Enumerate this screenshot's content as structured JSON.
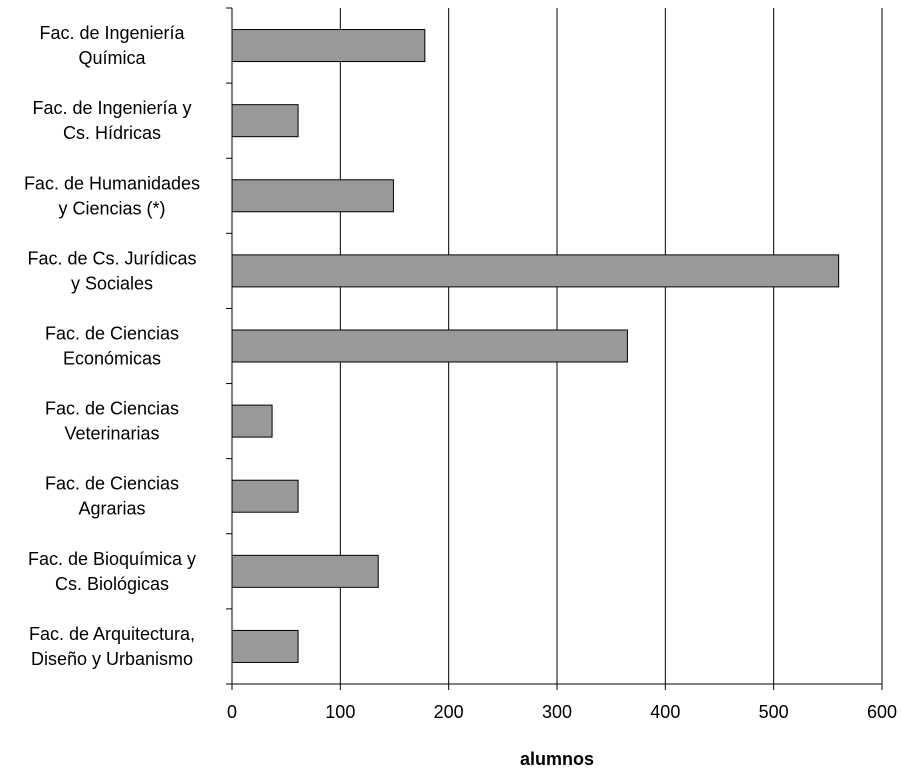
{
  "chart_data": {
    "type": "bar",
    "orientation": "horizontal",
    "categories": [
      "Fac. de Ingeniería Química",
      "Fac. de Ingeniería y Cs. Hídricas",
      "Fac. de Humanidades y Ciencias (*)",
      "Fac. de Cs. Jurídicas y Sociales",
      "Fac. de Ciencias Económicas",
      "Fac. de Ciencias Veterinarias",
      "Fac. de Ciencias Agrarias",
      "Fac. de Bioquímica y Cs. Biológicas",
      "Fac. de Arquitectura, Diseño y Urbanismo"
    ],
    "category_lines": [
      [
        "Fac. de Ingeniería",
        "Química"
      ],
      [
        "Fac. de Ingeniería y",
        "Cs. Hídricas"
      ],
      [
        "Fac. de Humanidades",
        "y Ciencias (*)"
      ],
      [
        "Fac. de Cs. Jurídicas",
        "y Sociales"
      ],
      [
        "Fac. de Ciencias",
        "Económicas"
      ],
      [
        "Fac. de Ciencias",
        "Veterinarias"
      ],
      [
        "Fac. de Ciencias",
        "Agrarias"
      ],
      [
        "Fac. de Bioquímica y",
        "Cs. Biológicas"
      ],
      [
        "Fac. de Arquitectura,",
        "Diseño y Urbanismo"
      ]
    ],
    "values": [
      178,
      61,
      149,
      560,
      365,
      37,
      61,
      135,
      61
    ],
    "xlabel": "alumnos",
    "xlim": [
      0,
      600
    ],
    "xticks": [
      0,
      100,
      200,
      300,
      400,
      500,
      600
    ],
    "grid": "vertical",
    "legend": "none",
    "bar_color": "#999999",
    "bar_edge_color": "#000000"
  }
}
